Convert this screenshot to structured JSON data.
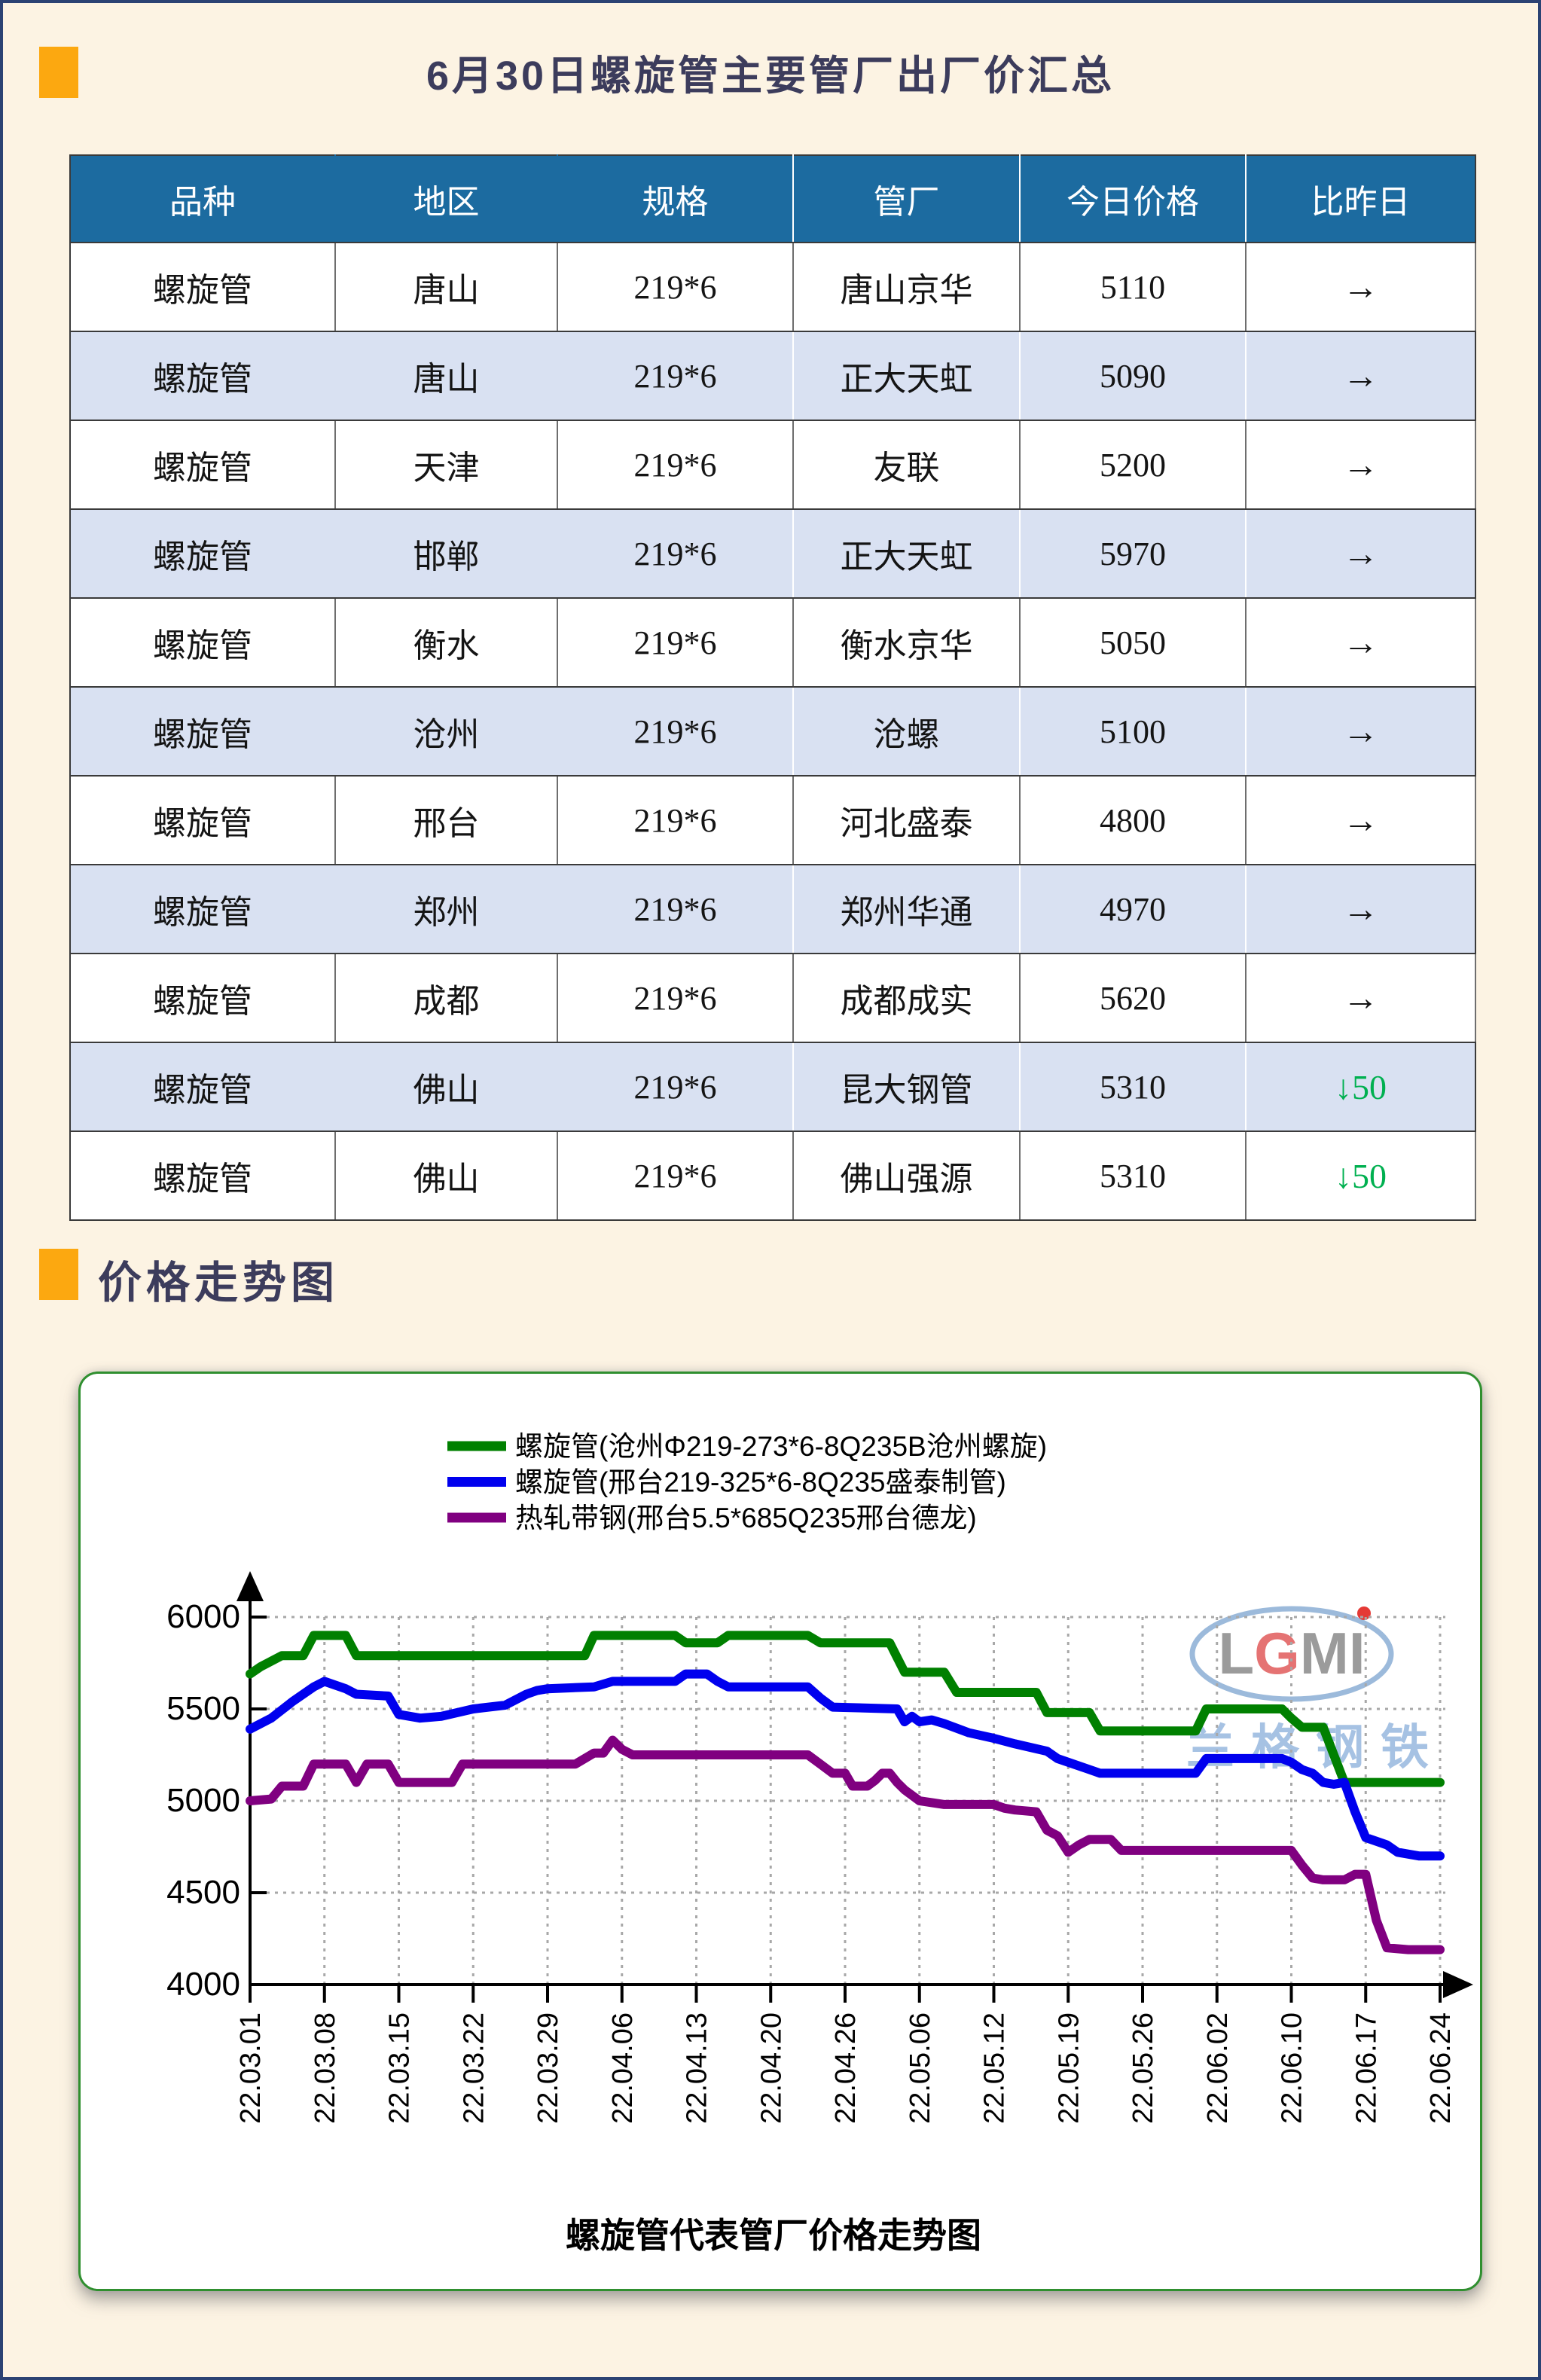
{
  "page": {
    "title": "6月30日螺旋管主要管厂出厂价汇总",
    "section2_title": "价格走势图"
  },
  "colors": {
    "accent_orange": "#FCA810",
    "header_blue": "#1C6BA0",
    "row_alt_blue": "#D9E1F2",
    "down_green": "#00B050",
    "page_border_navy": "#2B4273",
    "chart_border_green": "#2F8F2F",
    "watermark_blue": "#A6C2E3"
  },
  "table": {
    "headers": [
      "品种",
      "地区",
      "规格",
      "管厂",
      "今日价格",
      "比昨日"
    ],
    "rows": [
      {
        "variety": "螺旋管",
        "region": "唐山",
        "spec": "219*6",
        "mill": "唐山京华",
        "price": "5110",
        "change": "→",
        "change_type": "flat"
      },
      {
        "variety": "螺旋管",
        "region": "唐山",
        "spec": "219*6",
        "mill": "正大天虹",
        "price": "5090",
        "change": "→",
        "change_type": "flat"
      },
      {
        "variety": "螺旋管",
        "region": "天津",
        "spec": "219*6",
        "mill": "友联",
        "price": "5200",
        "change": "→",
        "change_type": "flat"
      },
      {
        "variety": "螺旋管",
        "region": "邯郸",
        "spec": "219*6",
        "mill": "正大天虹",
        "price": "5970",
        "change": "→",
        "change_type": "flat"
      },
      {
        "variety": "螺旋管",
        "region": "衡水",
        "spec": "219*6",
        "mill": "衡水京华",
        "price": "5050",
        "change": "→",
        "change_type": "flat"
      },
      {
        "variety": "螺旋管",
        "region": "沧州",
        "spec": "219*6",
        "mill": "沧螺",
        "price": "5100",
        "change": "→",
        "change_type": "flat"
      },
      {
        "variety": "螺旋管",
        "region": "邢台",
        "spec": "219*6",
        "mill": "河北盛泰",
        "price": "4800",
        "change": "→",
        "change_type": "flat"
      },
      {
        "variety": "螺旋管",
        "region": "郑州",
        "spec": "219*6",
        "mill": "郑州华通",
        "price": "4970",
        "change": "→",
        "change_type": "flat"
      },
      {
        "variety": "螺旋管",
        "region": "成都",
        "spec": "219*6",
        "mill": "成都成实",
        "price": "5620",
        "change": "→",
        "change_type": "flat"
      },
      {
        "variety": "螺旋管",
        "region": "佛山",
        "spec": "219*6",
        "mill": "昆大钢管",
        "price": "5310",
        "change": "↓50",
        "change_type": "down"
      },
      {
        "variety": "螺旋管",
        "region": "佛山",
        "spec": "219*6",
        "mill": "佛山强源",
        "price": "5310",
        "change": "↓50",
        "change_type": "down"
      }
    ]
  },
  "chart_data": {
    "type": "line",
    "title": "螺旋管代表管厂价格走势图",
    "ylim": [
      4000,
      6000
    ],
    "yticks": [
      6000,
      5500,
      5000,
      4500,
      4000
    ],
    "grid": "dotted",
    "legend_position": "top-center",
    "xtick_labels": [
      "22.03.01",
      "22.03.08",
      "22.03.15",
      "22.03.22",
      "22.03.29",
      "22.04.06",
      "22.04.13",
      "22.04.20",
      "22.04.26",
      "22.05.06",
      "22.05.12",
      "22.05.19",
      "22.05.26",
      "22.06.02",
      "22.06.10",
      "22.06.17",
      "22.06.24"
    ],
    "xtick_days": [
      0,
      7,
      14,
      21,
      28,
      36,
      43,
      50,
      56,
      66,
      72,
      79,
      86,
      93,
      101,
      108,
      115
    ],
    "watermark": {
      "logo": "LGMI",
      "name": "兰格钢铁"
    },
    "series": [
      {
        "name": "螺旋管(沧州Φ219-273*6-8Q235B沧州螺旋)",
        "color": "#008000",
        "points": [
          [
            0,
            5690
          ],
          [
            1,
            5730
          ],
          [
            3,
            5790
          ],
          [
            5,
            5790
          ],
          [
            6,
            5900
          ],
          [
            9,
            5900
          ],
          [
            10,
            5790
          ],
          [
            32,
            5790
          ],
          [
            33,
            5900
          ],
          [
            41,
            5900
          ],
          [
            42,
            5860
          ],
          [
            45,
            5860
          ],
          [
            46,
            5900
          ],
          [
            53,
            5900
          ],
          [
            54,
            5860
          ],
          [
            62,
            5860
          ],
          [
            63,
            5780
          ],
          [
            64,
            5700
          ],
          [
            68,
            5700
          ],
          [
            69,
            5590
          ],
          [
            76,
            5590
          ],
          [
            77,
            5480
          ],
          [
            81,
            5480
          ],
          [
            82,
            5380
          ],
          [
            91,
            5380
          ],
          [
            92,
            5500
          ],
          [
            100,
            5500
          ],
          [
            101,
            5450
          ],
          [
            102,
            5400
          ],
          [
            104,
            5400
          ],
          [
            105,
            5250
          ],
          [
            106,
            5100
          ],
          [
            115,
            5100
          ]
        ]
      },
      {
        "name": "螺旋管(邢台219-325*6-8Q235盛泰制管)",
        "color": "#0000EE",
        "points": [
          [
            0,
            5390
          ],
          [
            2,
            5450
          ],
          [
            4,
            5540
          ],
          [
            6,
            5620
          ],
          [
            7,
            5650
          ],
          [
            9,
            5610
          ],
          [
            10,
            5580
          ],
          [
            13,
            5570
          ],
          [
            14,
            5470
          ],
          [
            16,
            5450
          ],
          [
            18,
            5460
          ],
          [
            21,
            5500
          ],
          [
            24,
            5520
          ],
          [
            26,
            5580
          ],
          [
            27,
            5600
          ],
          [
            28,
            5610
          ],
          [
            33,
            5620
          ],
          [
            35,
            5650
          ],
          [
            41,
            5650
          ],
          [
            42,
            5690
          ],
          [
            44,
            5690
          ],
          [
            45,
            5650
          ],
          [
            46,
            5620
          ],
          [
            53,
            5620
          ],
          [
            54,
            5560
          ],
          [
            55,
            5510
          ],
          [
            63,
            5500
          ],
          [
            64,
            5430
          ],
          [
            65,
            5460
          ],
          [
            66,
            5430
          ],
          [
            67,
            5440
          ],
          [
            68,
            5420
          ],
          [
            70,
            5370
          ],
          [
            72,
            5340
          ],
          [
            74,
            5310
          ],
          [
            77,
            5270
          ],
          [
            78,
            5230
          ],
          [
            79,
            5210
          ],
          [
            81,
            5170
          ],
          [
            82,
            5150
          ],
          [
            91,
            5150
          ],
          [
            92,
            5230
          ],
          [
            100,
            5230
          ],
          [
            101,
            5210
          ],
          [
            102,
            5170
          ],
          [
            103,
            5150
          ],
          [
            104,
            5100
          ],
          [
            105,
            5090
          ],
          [
            106,
            5100
          ],
          [
            107,
            4940
          ],
          [
            108,
            4800
          ],
          [
            109,
            4780
          ],
          [
            110,
            4760
          ],
          [
            111,
            4720
          ],
          [
            113,
            4700
          ],
          [
            115,
            4700
          ]
        ]
      },
      {
        "name": "热轧带钢(邢台5.5*685Q235邢台德龙)",
        "color": "#800080",
        "points": [
          [
            0,
            5000
          ],
          [
            2,
            5010
          ],
          [
            3,
            5080
          ],
          [
            5,
            5080
          ],
          [
            6,
            5200
          ],
          [
            9,
            5200
          ],
          [
            10,
            5100
          ],
          [
            11,
            5200
          ],
          [
            13,
            5200
          ],
          [
            14,
            5100
          ],
          [
            19,
            5100
          ],
          [
            20,
            5200
          ],
          [
            31,
            5200
          ],
          [
            33,
            5260
          ],
          [
            34,
            5260
          ],
          [
            35,
            5330
          ],
          [
            36,
            5280
          ],
          [
            37,
            5250
          ],
          [
            53,
            5250
          ],
          [
            54,
            5200
          ],
          [
            55,
            5150
          ],
          [
            56,
            5150
          ],
          [
            57,
            5080
          ],
          [
            59,
            5080
          ],
          [
            60,
            5110
          ],
          [
            61,
            5150
          ],
          [
            62,
            5150
          ],
          [
            63,
            5100
          ],
          [
            64,
            5060
          ],
          [
            66,
            5000
          ],
          [
            67,
            4990
          ],
          [
            68,
            4980
          ],
          [
            72,
            4980
          ],
          [
            73,
            4960
          ],
          [
            74,
            4950
          ],
          [
            76,
            4940
          ],
          [
            77,
            4840
          ],
          [
            78,
            4810
          ],
          [
            79,
            4720
          ],
          [
            80,
            4760
          ],
          [
            81,
            4790
          ],
          [
            83,
            4790
          ],
          [
            84,
            4730
          ],
          [
            101,
            4730
          ],
          [
            102,
            4650
          ],
          [
            103,
            4580
          ],
          [
            104,
            4570
          ],
          [
            106,
            4570
          ],
          [
            107,
            4600
          ],
          [
            108,
            4600
          ],
          [
            109,
            4350
          ],
          [
            110,
            4200
          ],
          [
            112,
            4190
          ],
          [
            115,
            4190
          ]
        ]
      }
    ]
  }
}
